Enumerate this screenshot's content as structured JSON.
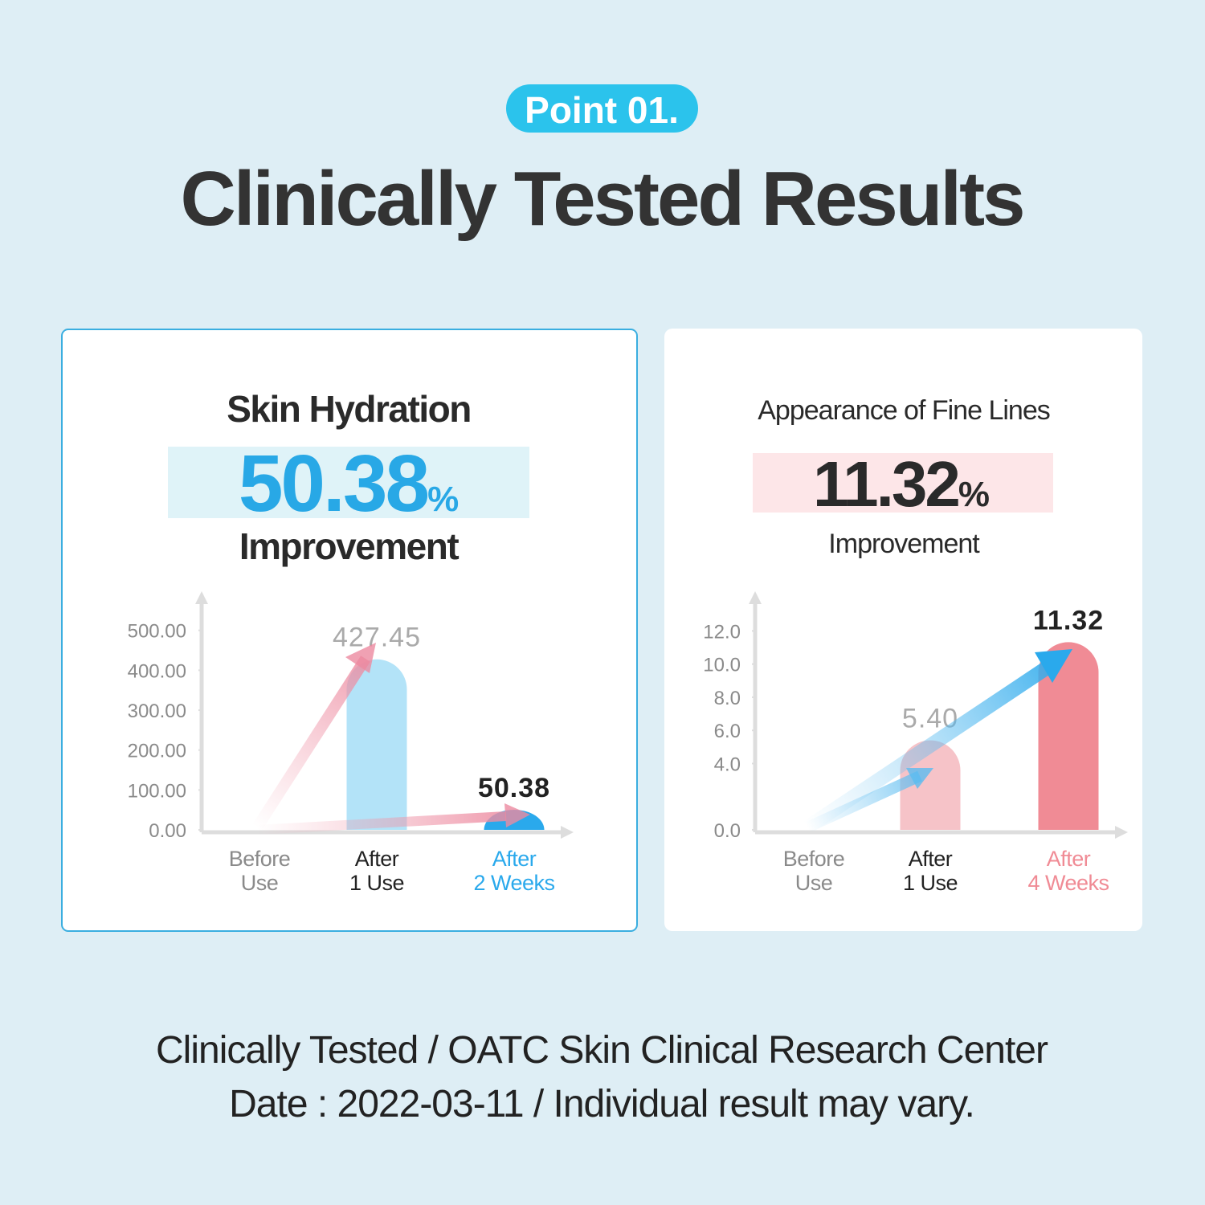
{
  "badge": "Point 01.",
  "title": "Clinically Tested Results",
  "chart_data": [
    {
      "type": "bar",
      "title": "Skin Hydration",
      "headline": "50.38",
      "headline_unit": "%",
      "subtitle": "Improvement",
      "categories": [
        [
          "Before",
          "Use"
        ],
        [
          "After",
          "1 Use"
        ],
        [
          "After",
          "2 Weeks"
        ]
      ],
      "values": [
        0,
        427.45,
        50.38
      ],
      "colors": [
        "#b3e3f8",
        "#b3e3f8",
        "#2aa9ec"
      ],
      "label_colors": [
        "#8a8a8a",
        "#222222",
        "#2aa9ec"
      ],
      "ylim": [
        0,
        590
      ],
      "yticks": [
        {
          "value": 0,
          "label": "0.00"
        },
        {
          "value": 100,
          "label": "100.00"
        },
        {
          "value": 200,
          "label": "200.00"
        },
        {
          "value": 300,
          "label": "300.00"
        },
        {
          "value": 400,
          "label": "400.00"
        },
        {
          "value": 500,
          "label": "500.00"
        }
      ]
    },
    {
      "type": "bar",
      "title": "Appearance of Fine Lines",
      "headline": "11.32",
      "headline_unit": "%",
      "subtitle": "Improvement",
      "categories": [
        [
          "Before",
          "Use"
        ],
        [
          "After",
          "1 Use"
        ],
        [
          "After",
          "4 Weeks"
        ]
      ],
      "values": [
        0,
        5.4,
        11.32
      ],
      "value_labels": [
        null,
        "5.40",
        "11.32"
      ],
      "colors": [
        "#f6c3c8",
        "#f6c3c8",
        "#f08b95"
      ],
      "label_colors": [
        "#8a8a8a",
        "#222222",
        "#f08b95"
      ],
      "ylim": [
        0,
        14.2
      ],
      "yticks": [
        {
          "value": 0,
          "label": "0.0"
        },
        {
          "value": 4,
          "label": "4.0"
        },
        {
          "value": 6,
          "label": "6.0"
        },
        {
          "value": 8,
          "label": "8.0"
        },
        {
          "value": 10,
          "label": "10.0"
        },
        {
          "value": 12,
          "label": "12.0"
        }
      ]
    }
  ],
  "footer": [
    "Clinically Tested / OATC Skin Clinical Research Center",
    "Date : 2022-03-11 / Individual result may vary."
  ]
}
